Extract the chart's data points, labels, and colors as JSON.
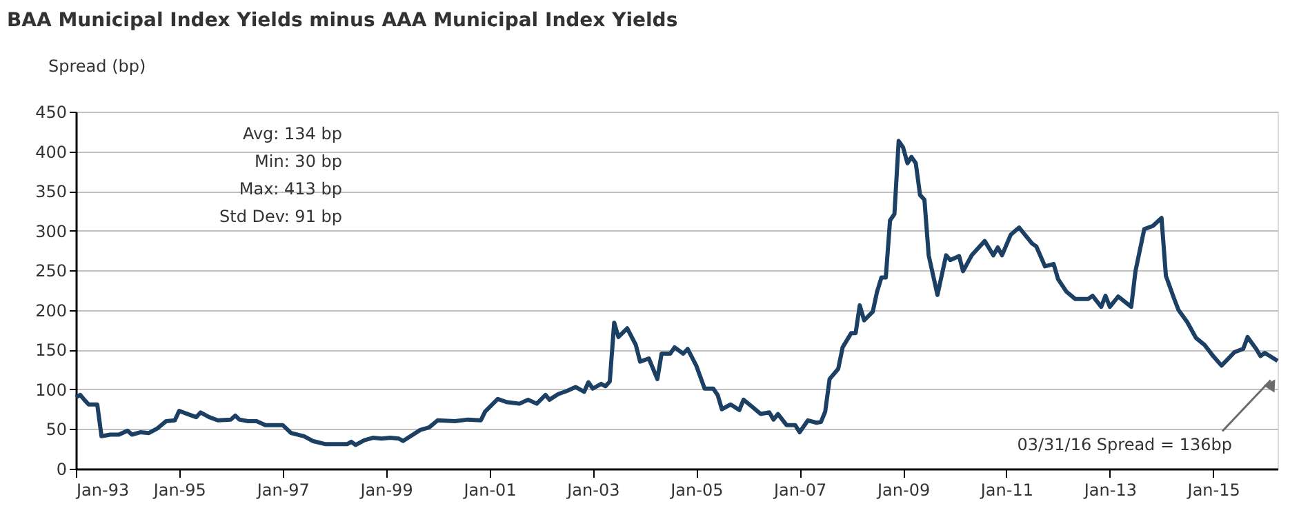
{
  "chart_data": {
    "type": "line",
    "title": "BAA Municipal Index Yields minus AAA Municipal Index Yields",
    "ylabel": "Spread (bp)",
    "x": [
      "1993-01",
      "1993-02",
      "1993-03",
      "1993-04",
      "1993-06",
      "1993-07",
      "1993-09",
      "1993-11",
      "1994-01",
      "1994-02",
      "1994-04",
      "1994-06",
      "1994-08",
      "1994-10",
      "1994-12",
      "1995-01",
      "1995-03",
      "1995-05",
      "1995-06",
      "1995-08",
      "1995-10",
      "1996-01",
      "1996-02",
      "1996-03",
      "1996-05",
      "1996-07",
      "1996-09",
      "1996-11",
      "1997-01",
      "1997-03",
      "1997-06",
      "1997-08",
      "1997-11",
      "1998-02",
      "1998-04",
      "1998-05",
      "1998-06",
      "1998-08",
      "1998-10",
      "1998-12",
      "1999-02",
      "1999-04",
      "1999-05",
      "1999-07",
      "1999-09",
      "1999-11",
      "2000-01",
      "2000-05",
      "2000-08",
      "2000-11",
      "2000-12",
      "2001-03",
      "2001-05",
      "2001-08",
      "2001-10",
      "2001-12",
      "2002-02",
      "2002-03",
      "2002-05",
      "2002-07",
      "2002-09",
      "2002-11",
      "2002-12",
      "2003-01",
      "2003-03",
      "2003-04",
      "2003-05",
      "2003-06",
      "2003-07",
      "2003-09",
      "2003-11",
      "2003-12",
      "2004-02",
      "2004-04",
      "2004-05",
      "2004-07",
      "2004-08",
      "2004-10",
      "2004-11",
      "2005-01",
      "2005-03",
      "2005-05",
      "2005-06",
      "2005-07",
      "2005-09",
      "2005-11",
      "2005-12",
      "2006-02",
      "2006-04",
      "2006-06",
      "2006-07",
      "2006-08",
      "2006-10",
      "2006-12",
      "2007-01",
      "2007-03",
      "2007-05",
      "2007-06",
      "2007-07",
      "2007-08",
      "2007-10",
      "2007-11",
      "2008-01",
      "2008-02",
      "2008-03",
      "2008-04",
      "2008-06",
      "2008-07",
      "2008-08",
      "2008-09",
      "2008-10",
      "2008-11",
      "2008-12",
      "2009-01",
      "2009-02",
      "2009-03",
      "2009-04",
      "2009-05",
      "2009-06",
      "2009-07",
      "2009-09",
      "2009-11",
      "2009-12",
      "2010-02",
      "2010-03",
      "2010-05",
      "2010-08",
      "2010-10",
      "2010-11",
      "2010-12",
      "2011-02",
      "2011-04",
      "2011-07",
      "2011-08",
      "2011-10",
      "2011-12",
      "2012-01",
      "2012-03",
      "2012-05",
      "2012-08",
      "2012-09",
      "2012-11",
      "2012-12",
      "2013-01",
      "2013-03",
      "2013-06",
      "2013-07",
      "2013-09",
      "2013-11",
      "2014-01",
      "2014-02",
      "2014-04",
      "2014-05",
      "2014-07",
      "2014-09",
      "2014-11",
      "2015-01",
      "2015-03",
      "2015-06",
      "2015-08",
      "2015-09",
      "2015-11",
      "2015-12",
      "2016-01",
      "2016-03-31"
    ],
    "series": [
      {
        "color": "#1c3f64",
        "values": [
          90,
          93,
          87,
          81,
          81,
          41,
          43,
          43,
          48,
          43,
          46,
          45,
          51,
          60,
          61,
          73,
          69,
          65,
          71,
          65,
          61,
          62,
          67,
          62,
          60,
          60,
          55,
          55,
          55,
          45,
          41,
          35,
          31,
          31,
          31,
          34,
          30,
          36,
          39,
          38,
          39,
          38,
          35,
          42,
          49,
          52,
          61,
          60,
          62,
          61,
          72,
          88,
          84,
          82,
          87,
          82,
          93,
          87,
          94,
          98,
          103,
          97,
          109,
          101,
          107,
          104,
          110,
          184,
          166,
          177,
          156,
          135,
          139,
          113,
          145,
          145,
          153,
          145,
          151,
          130,
          101,
          101,
          93,
          75,
          81,
          74,
          87,
          78,
          69,
          71,
          62,
          69,
          55,
          55,
          46,
          61,
          58,
          59,
          72,
          113,
          126,
          153,
          171,
          171,
          206,
          187,
          198,
          223,
          241,
          241,
          313,
          321,
          413,
          405,
          385,
          393,
          385,
          345,
          339,
          269,
          219,
          269,
          263,
          268,
          249,
          269,
          287,
          269,
          279,
          269,
          295,
          304,
          284,
          280,
          255,
          258,
          239,
          223,
          214,
          214,
          218,
          204,
          218,
          204,
          217,
          204,
          249,
          302,
          306,
          316,
          243,
          214,
          200,
          185,
          165,
          156,
          142,
          130,
          147,
          151,
          166,
          151,
          142,
          146,
          136
        ]
      }
    ],
    "xlim": [
      "1993-01",
      "2016-03-31"
    ],
    "xticks": [
      {
        "value": "1993-01",
        "label": "Jan-93"
      },
      {
        "value": "1995-01",
        "label": "Jan-95"
      },
      {
        "value": "1997-01",
        "label": "Jan-97"
      },
      {
        "value": "1999-01",
        "label": "Jan-99"
      },
      {
        "value": "2001-01",
        "label": "Jan-01"
      },
      {
        "value": "2003-01",
        "label": "Jan-03"
      },
      {
        "value": "2005-01",
        "label": "Jan-05"
      },
      {
        "value": "2007-01",
        "label": "Jan-07"
      },
      {
        "value": "2009-01",
        "label": "Jan-09"
      },
      {
        "value": "2011-01",
        "label": "Jan-11"
      },
      {
        "value": "2013-01",
        "label": "Jan-13"
      },
      {
        "value": "2015-01",
        "label": "Jan-15"
      }
    ],
    "ylim": [
      0,
      450
    ],
    "yticks": [
      0,
      50,
      100,
      150,
      200,
      250,
      300,
      350,
      400,
      450
    ],
    "grid": "y",
    "line_style": "solid",
    "annotations": [
      "Avg: 134 bp",
      "Min: 30 bp",
      "Max: 413 bp",
      "Std Dev: 91 bp",
      "03/31/16 Spread = 136bp"
    ]
  }
}
